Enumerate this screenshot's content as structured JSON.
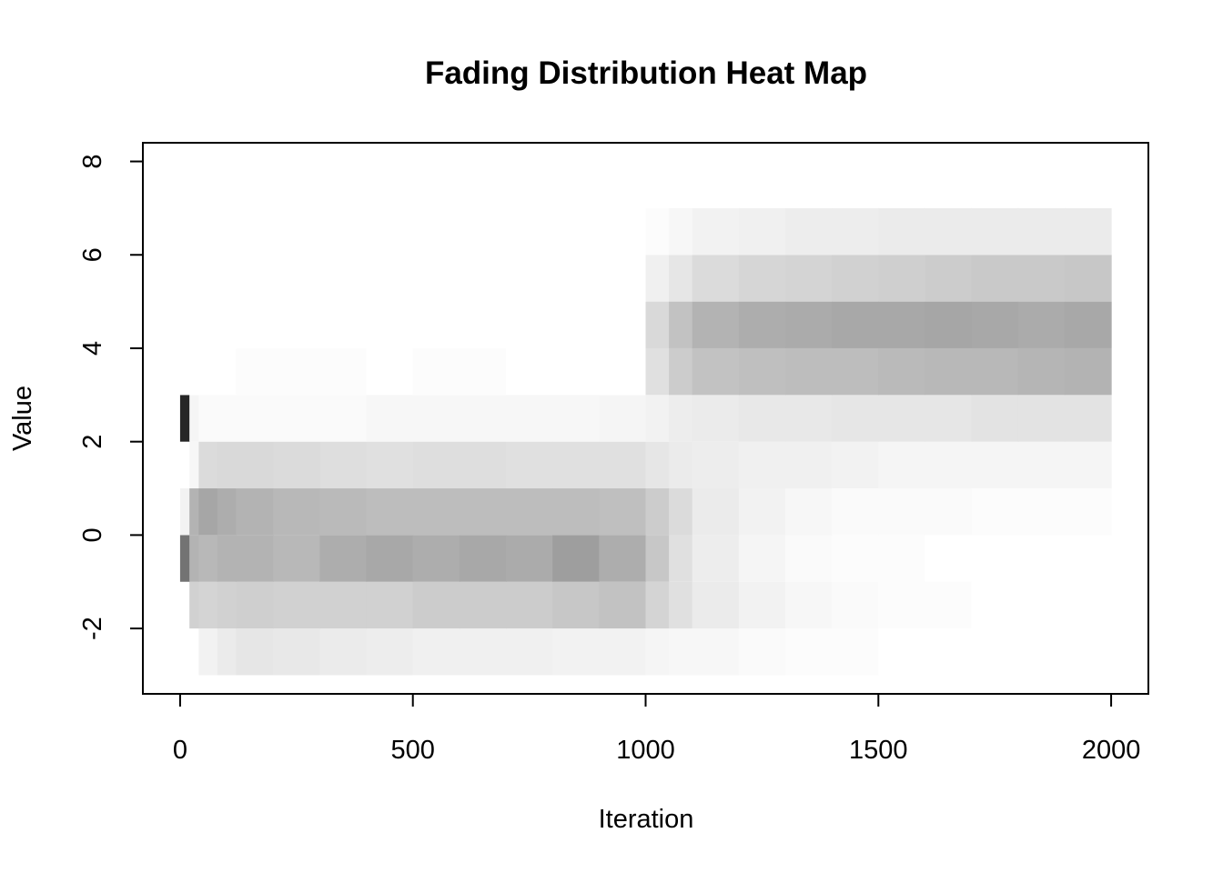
{
  "chart_data": {
    "type": "heatmap",
    "title": "Fading Distribution Heat Map",
    "xlabel": "Iteration",
    "ylabel": "Value",
    "xlim": [
      -80,
      2080
    ],
    "ylim": [
      -3.4,
      8.4
    ],
    "x_ticks": [
      0,
      500,
      1000,
      1500,
      2000
    ],
    "x_tick_labels": [
      "0",
      "500",
      "1000",
      "1500",
      "2000"
    ],
    "y_ticks": [
      -2,
      0,
      2,
      4,
      6,
      8
    ],
    "y_tick_labels": [
      "-2",
      "0",
      "2",
      "4",
      "6",
      "8"
    ],
    "color_scale": {
      "low": "#ffffff",
      "high": "#000000"
    },
    "iteration_breaks": [
      0,
      20,
      40,
      80,
      120,
      200,
      300,
      400,
      500,
      600,
      700,
      800,
      900,
      1000,
      1050,
      1100,
      1200,
      1300,
      1400,
      1500,
      1600,
      1700,
      1800,
      1900,
      2000
    ],
    "rows": [
      {
        "value_range": [
          -3,
          -2
        ],
        "intensity": [
          0.0,
          0.0,
          0.05,
          0.08,
          0.1,
          0.09,
          0.08,
          0.07,
          0.06,
          0.06,
          0.06,
          0.05,
          0.05,
          0.04,
          0.03,
          0.03,
          0.02,
          0.01,
          0.01,
          0.0,
          0.0,
          0.0,
          0.0,
          0.0
        ]
      },
      {
        "value_range": [
          -2,
          -1
        ],
        "intensity": [
          0.0,
          0.18,
          0.17,
          0.18,
          0.19,
          0.18,
          0.18,
          0.18,
          0.2,
          0.2,
          0.2,
          0.22,
          0.24,
          0.17,
          0.12,
          0.08,
          0.05,
          0.03,
          0.02,
          0.01,
          0.01,
          0.0,
          0.0,
          0.0
        ]
      },
      {
        "value_range": [
          -1,
          0
        ],
        "intensity": [
          0.55,
          0.3,
          0.28,
          0.3,
          0.3,
          0.28,
          0.32,
          0.34,
          0.32,
          0.34,
          0.33,
          0.38,
          0.32,
          0.22,
          0.12,
          0.07,
          0.04,
          0.02,
          0.01,
          0.01,
          0.0,
          0.0,
          0.0,
          0.0
        ]
      },
      {
        "value_range": [
          0,
          1
        ],
        "intensity": [
          0.05,
          0.3,
          0.35,
          0.32,
          0.3,
          0.28,
          0.27,
          0.26,
          0.26,
          0.26,
          0.26,
          0.26,
          0.25,
          0.2,
          0.14,
          0.08,
          0.05,
          0.03,
          0.02,
          0.02,
          0.02,
          0.01,
          0.01,
          0.01
        ]
      },
      {
        "value_range": [
          1,
          2
        ],
        "intensity": [
          0.0,
          0.03,
          0.14,
          0.15,
          0.15,
          0.14,
          0.13,
          0.12,
          0.13,
          0.13,
          0.12,
          0.12,
          0.12,
          0.1,
          0.08,
          0.07,
          0.06,
          0.06,
          0.05,
          0.04,
          0.04,
          0.04,
          0.04,
          0.04
        ]
      },
      {
        "value_range": [
          2,
          3
        ],
        "intensity": [
          0.85,
          0.04,
          0.02,
          0.02,
          0.02,
          0.02,
          0.02,
          0.03,
          0.03,
          0.03,
          0.03,
          0.03,
          0.04,
          0.05,
          0.07,
          0.08,
          0.09,
          0.09,
          0.1,
          0.1,
          0.1,
          0.11,
          0.11,
          0.11
        ]
      },
      {
        "value_range": [
          3,
          4
        ],
        "intensity": [
          0.0,
          0.0,
          0.0,
          0.0,
          0.01,
          0.01,
          0.01,
          0.0,
          0.01,
          0.01,
          0.0,
          0.0,
          0.0,
          0.12,
          0.2,
          0.24,
          0.25,
          0.26,
          0.26,
          0.27,
          0.28,
          0.28,
          0.29,
          0.3
        ]
      },
      {
        "value_range": [
          4,
          5
        ],
        "intensity": [
          0.0,
          0.0,
          0.0,
          0.0,
          0.0,
          0.0,
          0.0,
          0.0,
          0.0,
          0.0,
          0.0,
          0.0,
          0.0,
          0.15,
          0.24,
          0.3,
          0.32,
          0.33,
          0.34,
          0.34,
          0.35,
          0.34,
          0.33,
          0.34
        ]
      },
      {
        "value_range": [
          5,
          6
        ],
        "intensity": [
          0.0,
          0.0,
          0.0,
          0.0,
          0.0,
          0.0,
          0.0,
          0.0,
          0.0,
          0.0,
          0.0,
          0.0,
          0.0,
          0.06,
          0.1,
          0.14,
          0.16,
          0.17,
          0.18,
          0.19,
          0.2,
          0.21,
          0.21,
          0.22
        ]
      },
      {
        "value_range": [
          6,
          7
        ],
        "intensity": [
          0.0,
          0.0,
          0.0,
          0.0,
          0.0,
          0.0,
          0.0,
          0.0,
          0.0,
          0.0,
          0.0,
          0.0,
          0.0,
          0.01,
          0.03,
          0.05,
          0.06,
          0.07,
          0.07,
          0.08,
          0.08,
          0.08,
          0.08,
          0.08
        ]
      }
    ]
  }
}
